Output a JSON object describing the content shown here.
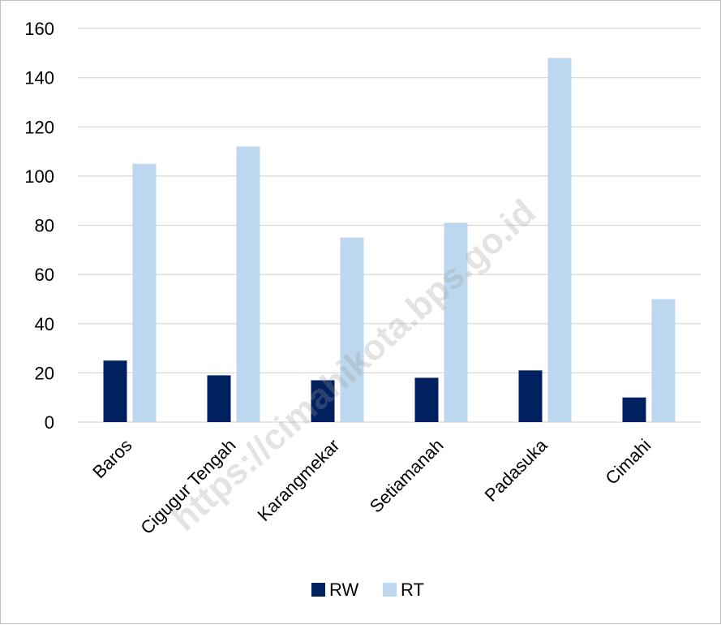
{
  "chart_data": {
    "type": "bar",
    "categories": [
      "Baros",
      "Cigugur Tengah",
      "Karangmekar",
      "Setiamanah",
      "Padasuka",
      "Cimahi"
    ],
    "series": [
      {
        "name": "RW",
        "color": "#002060",
        "values": [
          25,
          19,
          17,
          18,
          21,
          10
        ]
      },
      {
        "name": "RT",
        "color": "#bdd7ee",
        "values": [
          105,
          112,
          75,
          81,
          148,
          50
        ]
      }
    ],
    "ylim": [
      0,
      160
    ],
    "yticks": [
      0,
      20,
      40,
      60,
      80,
      100,
      120,
      140,
      160
    ],
    "grid": true,
    "legend_position": "bottom",
    "watermark": "https://cimahikota.bps.go.id"
  }
}
